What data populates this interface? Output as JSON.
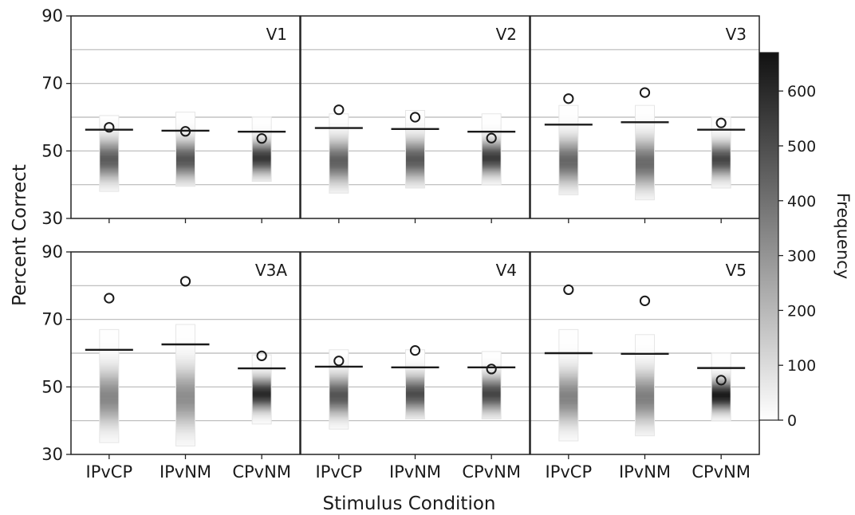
{
  "chart_data": {
    "type": "strip-histogram",
    "xlabel": "Stimulus Condition",
    "ylabel": "Percent Correct",
    "ylim": [
      30,
      90
    ],
    "yticks": [
      30,
      50,
      70,
      90
    ],
    "grid_lines": [
      40,
      50,
      60,
      70,
      80
    ],
    "grid": true,
    "categories": [
      "IPvCP",
      "IPvNM",
      "CPvNM"
    ],
    "colorbar": {
      "label": "Frequency",
      "range": [
        0,
        670
      ],
      "ticks": [
        0,
        100,
        200,
        300,
        400,
        500,
        600
      ],
      "colors": [
        "#ffffff",
        "#111111"
      ]
    },
    "legend": "none",
    "panels": [
      {
        "title": "V1",
        "conditions": [
          {
            "category": "IPvCP",
            "observed": 57.0,
            "threshold": 56.3,
            "dist_min": 38.0,
            "dist_max": 60.5,
            "peak": 47.5,
            "peak_freq": 460,
            "spread": 4.0
          },
          {
            "category": "IPvNM",
            "observed": 55.8,
            "threshold": 56.0,
            "dist_min": 39.5,
            "dist_max": 61.5,
            "peak": 47.5,
            "peak_freq": 480,
            "spread": 3.8
          },
          {
            "category": "CPvNM",
            "observed": 53.7,
            "threshold": 55.7,
            "dist_min": 41.0,
            "dist_max": 60.0,
            "peak": 48.0,
            "peak_freq": 560,
            "spread": 3.2
          }
        ]
      },
      {
        "title": "V2",
        "conditions": [
          {
            "category": "IPvCP",
            "observed": 62.2,
            "threshold": 56.8,
            "dist_min": 37.5,
            "dist_max": 61.0,
            "peak": 47.0,
            "peak_freq": 450,
            "spread": 4.2
          },
          {
            "category": "IPvNM",
            "observed": 60.0,
            "threshold": 56.5,
            "dist_min": 39.0,
            "dist_max": 62.0,
            "peak": 47.5,
            "peak_freq": 470,
            "spread": 4.0
          },
          {
            "category": "CPvNM",
            "observed": 53.8,
            "threshold": 55.7,
            "dist_min": 40.0,
            "dist_max": 61.0,
            "peak": 48.0,
            "peak_freq": 550,
            "spread": 3.3
          }
        ]
      },
      {
        "title": "V3",
        "conditions": [
          {
            "category": "IPvCP",
            "observed": 65.5,
            "threshold": 57.8,
            "dist_min": 37.0,
            "dist_max": 63.5,
            "peak": 47.0,
            "peak_freq": 430,
            "spread": 4.5
          },
          {
            "category": "IPvNM",
            "observed": 67.3,
            "threshold": 58.5,
            "dist_min": 35.5,
            "dist_max": 63.5,
            "peak": 46.5,
            "peak_freq": 420,
            "spread": 4.8
          },
          {
            "category": "CPvNM",
            "observed": 58.3,
            "threshold": 56.3,
            "dist_min": 39.0,
            "dist_max": 60.0,
            "peak": 47.5,
            "peak_freq": 520,
            "spread": 3.4
          }
        ]
      },
      {
        "title": "V3A",
        "conditions": [
          {
            "category": "IPvCP",
            "observed": 76.3,
            "threshold": 61.0,
            "dist_min": 33.5,
            "dist_max": 67.0,
            "peak": 47.0,
            "peak_freq": 340,
            "spread": 5.5
          },
          {
            "category": "IPvNM",
            "observed": 81.3,
            "threshold": 62.6,
            "dist_min": 32.5,
            "dist_max": 68.5,
            "peak": 47.0,
            "peak_freq": 320,
            "spread": 6.0
          },
          {
            "category": "CPvNM",
            "observed": 59.2,
            "threshold": 55.5,
            "dist_min": 39.0,
            "dist_max": 59.5,
            "peak": 48.0,
            "peak_freq": 600,
            "spread": 3.2
          }
        ]
      },
      {
        "title": "V4",
        "conditions": [
          {
            "category": "IPvCP",
            "observed": 57.7,
            "threshold": 56.0,
            "dist_min": 37.5,
            "dist_max": 61.0,
            "peak": 47.5,
            "peak_freq": 480,
            "spread": 3.9
          },
          {
            "category": "IPvNM",
            "observed": 60.8,
            "threshold": 55.8,
            "dist_min": 40.5,
            "dist_max": 61.0,
            "peak": 48.0,
            "peak_freq": 500,
            "spread": 3.6
          },
          {
            "category": "CPvNM",
            "observed": 55.3,
            "threshold": 55.8,
            "dist_min": 40.5,
            "dist_max": 60.5,
            "peak": 48.0,
            "peak_freq": 520,
            "spread": 3.5
          }
        ]
      },
      {
        "title": "V5",
        "conditions": [
          {
            "category": "IPvCP",
            "observed": 78.8,
            "threshold": 60.0,
            "dist_min": 34.0,
            "dist_max": 67.0,
            "peak": 47.0,
            "peak_freq": 350,
            "spread": 5.3
          },
          {
            "category": "IPvNM",
            "observed": 75.5,
            "threshold": 59.8,
            "dist_min": 35.5,
            "dist_max": 65.5,
            "peak": 47.0,
            "peak_freq": 360,
            "spread": 5.2
          },
          {
            "category": "CPvNM",
            "observed": 52.0,
            "threshold": 55.6,
            "dist_min": 40.0,
            "dist_max": 60.0,
            "peak": 47.5,
            "peak_freq": 640,
            "spread": 3.0
          }
        ]
      }
    ]
  }
}
